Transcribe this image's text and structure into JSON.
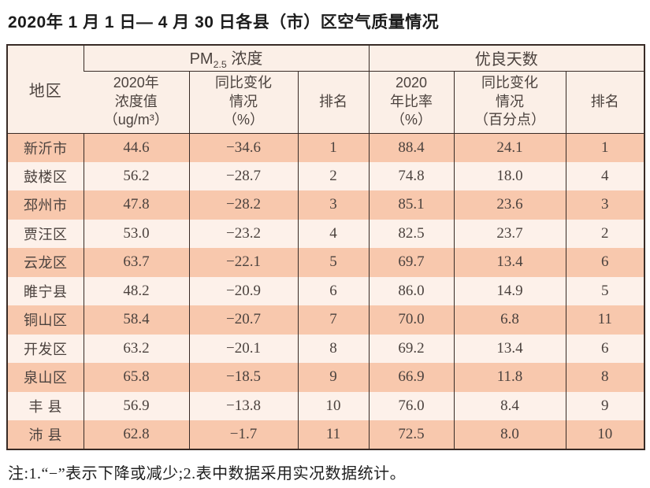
{
  "title": "2020年 1 月 1 日— 4 月 30 日各县（市）区空气质量情况",
  "table": {
    "region_header": "地区",
    "group_pm": {
      "prefix": "PM",
      "sub": "2.5",
      "suffix": " 浓度"
    },
    "group_good": "优良天数",
    "sub_headers": {
      "pm_value": "2020年\n浓度值\n（ug/m³）",
      "pm_change": "同比变化\n情况\n（%）",
      "pm_rank": "排名",
      "good_ratio": "2020\n年比率\n（%）",
      "good_change": "同比变化\n情况\n（百分点）",
      "good_rank": "排名"
    },
    "rows": [
      {
        "region": "新沂市",
        "pm_value": "44.6",
        "pm_change": "−34.6",
        "pm_rank": "1",
        "good_ratio": "88.4",
        "good_change": "24.1",
        "good_rank": "1"
      },
      {
        "region": "鼓楼区",
        "pm_value": "56.2",
        "pm_change": "−28.7",
        "pm_rank": "2",
        "good_ratio": "74.8",
        "good_change": "18.0",
        "good_rank": "4"
      },
      {
        "region": "邳州市",
        "pm_value": "47.8",
        "pm_change": "−28.2",
        "pm_rank": "3",
        "good_ratio": "85.1",
        "good_change": "23.6",
        "good_rank": "3"
      },
      {
        "region": "贾汪区",
        "pm_value": "53.0",
        "pm_change": "−23.2",
        "pm_rank": "4",
        "good_ratio": "82.5",
        "good_change": "23.7",
        "good_rank": "2"
      },
      {
        "region": "云龙区",
        "pm_value": "63.7",
        "pm_change": "−22.1",
        "pm_rank": "5",
        "good_ratio": "69.7",
        "good_change": "13.4",
        "good_rank": "6"
      },
      {
        "region": "睢宁县",
        "pm_value": "48.2",
        "pm_change": "−20.9",
        "pm_rank": "6",
        "good_ratio": "86.0",
        "good_change": "14.9",
        "good_rank": "5"
      },
      {
        "region": "铜山区",
        "pm_value": "58.4",
        "pm_change": "−20.7",
        "pm_rank": "7",
        "good_ratio": "70.0",
        "good_change": "6.8",
        "good_rank": "11"
      },
      {
        "region": "开发区",
        "pm_value": "63.2",
        "pm_change": "−20.1",
        "pm_rank": "8",
        "good_ratio": "69.2",
        "good_change": "13.4",
        "good_rank": "6"
      },
      {
        "region": "泉山区",
        "pm_value": "65.8",
        "pm_change": "−18.5",
        "pm_rank": "9",
        "good_ratio": "66.9",
        "good_change": "11.8",
        "good_rank": "8"
      },
      {
        "region": "丰 县",
        "pm_value": "56.9",
        "pm_change": "−13.8",
        "pm_rank": "10",
        "good_ratio": "76.0",
        "good_change": "8.4",
        "good_rank": "9"
      },
      {
        "region": "沛 县",
        "pm_value": "62.8",
        "pm_change": "−1.7",
        "pm_rank": "11",
        "good_ratio": "72.5",
        "good_change": "8.0",
        "good_rank": "10"
      }
    ]
  },
  "note": "注:1.“−”表示下降或减少;2.表中数据采用实况数据统计。",
  "colors": {
    "row_salmon": "#f8c8ad",
    "row_light": "#fdf1ea",
    "header_bg": "#fbefe7",
    "border": "#382b26",
    "table_text": "#4b423e",
    "title_text": "#1c1c1c"
  }
}
